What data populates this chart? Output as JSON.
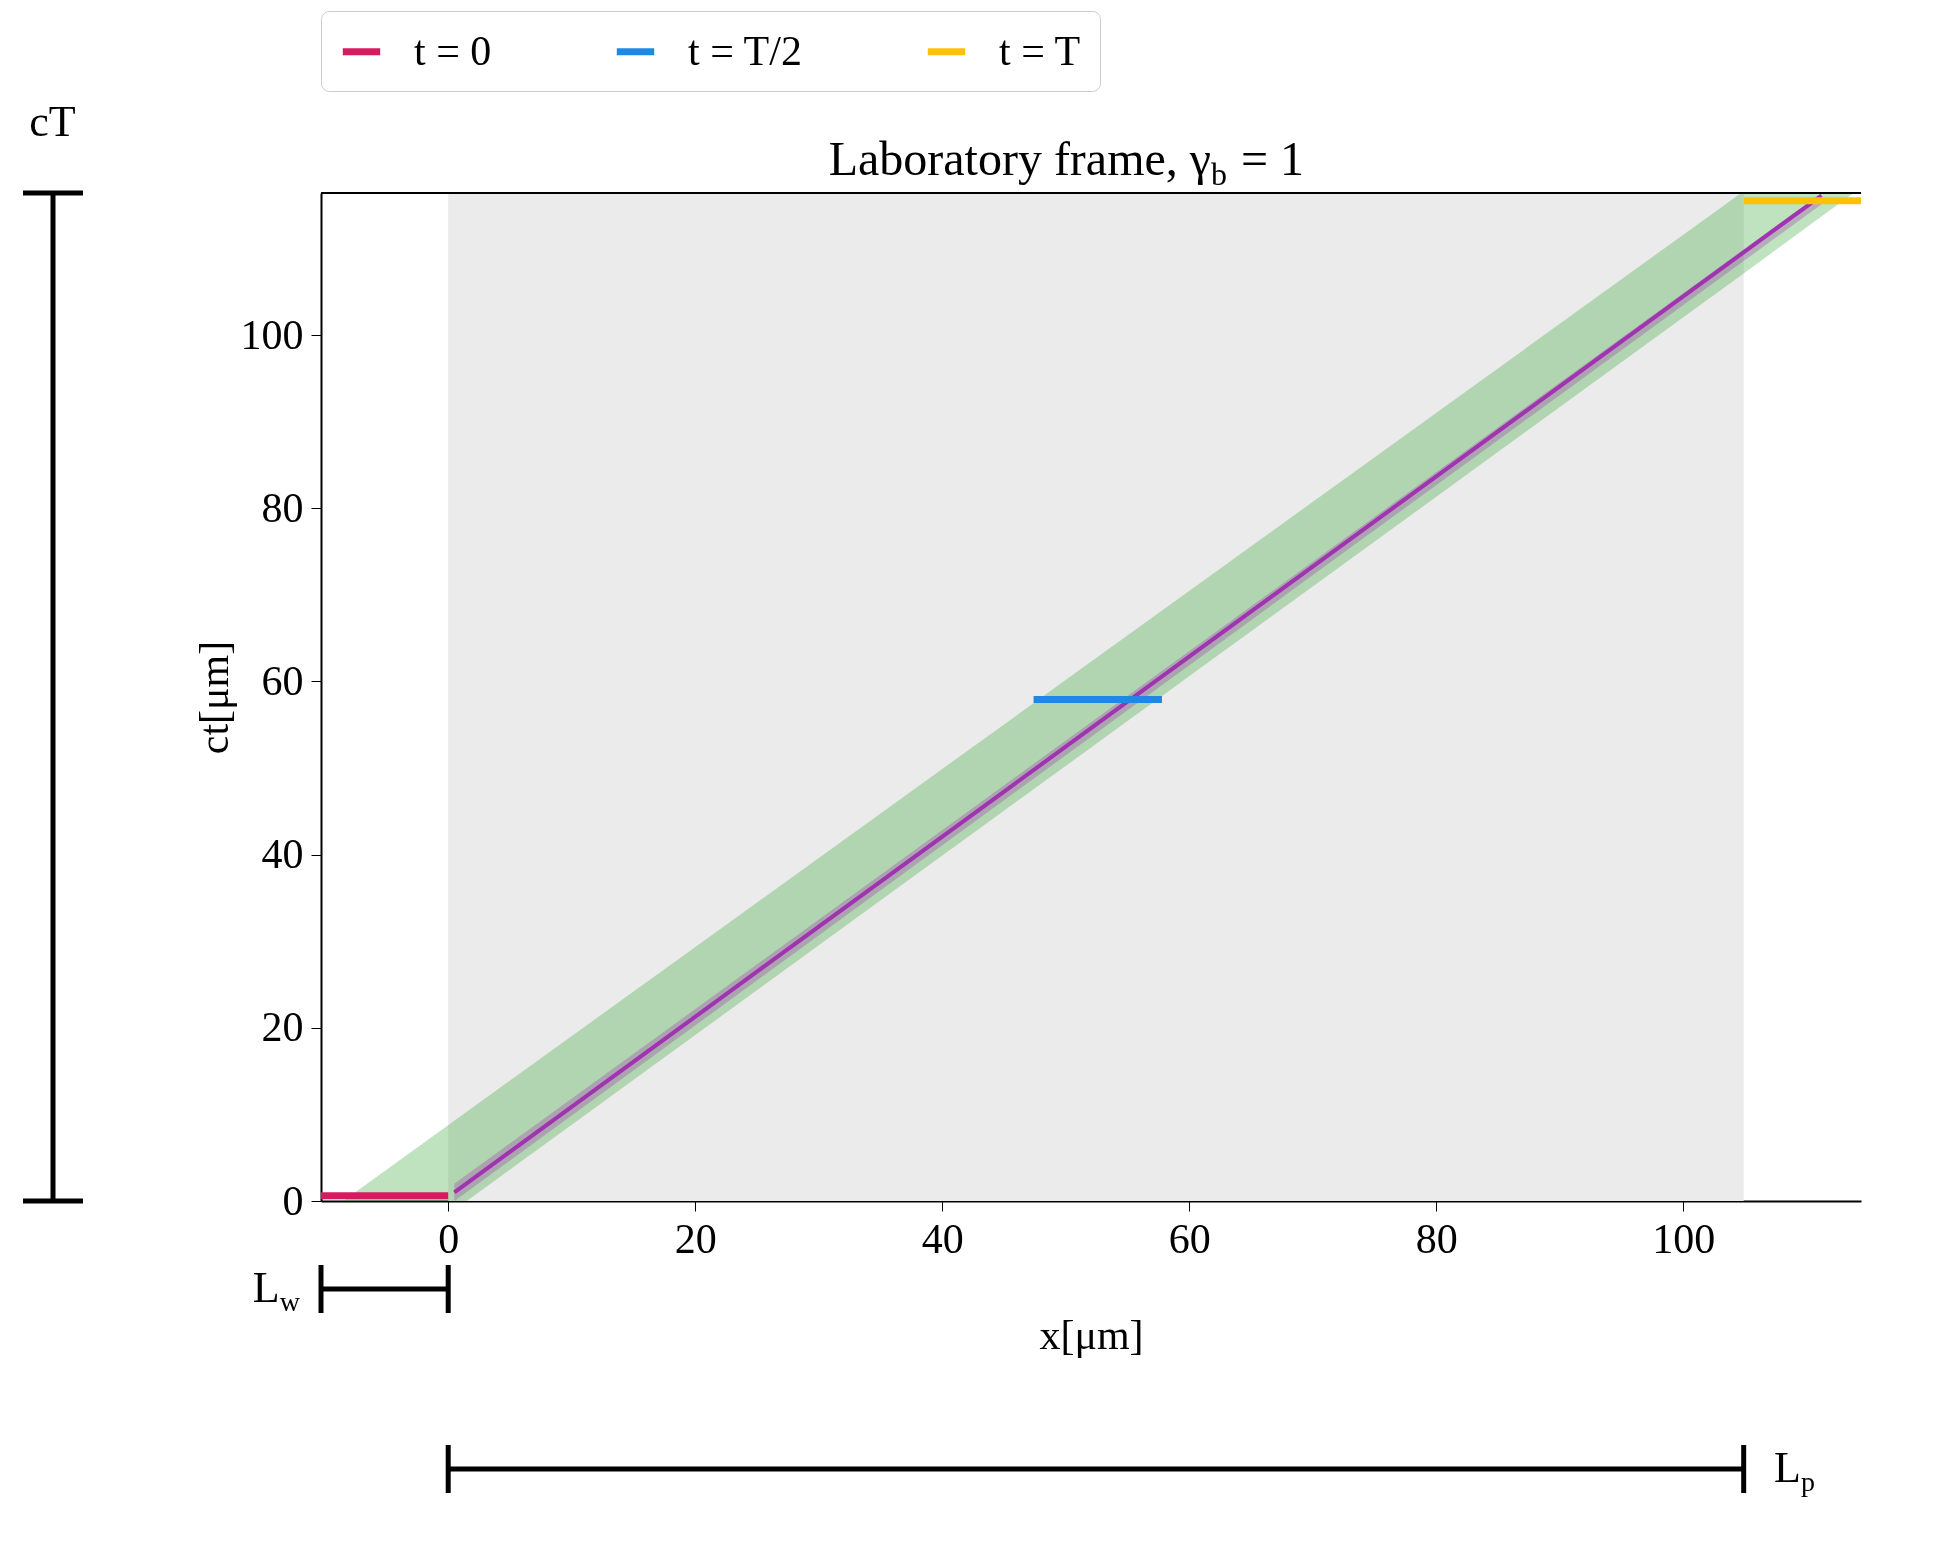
{
  "chart_data": {
    "type": "line",
    "title": "Laboratory frame, γ$_{b}$ = 1",
    "xlabel": "x[μm]",
    "ylabel": "ct[μm]",
    "xlim": [
      -10.3,
      114.4
    ],
    "ylim": [
      0,
      116.4
    ],
    "xticks": [
      0,
      20,
      40,
      60,
      80,
      100
    ],
    "yticks": [
      0,
      20,
      40,
      60,
      80,
      100
    ],
    "grid": false,
    "legend": "top",
    "bands": [
      {
        "axis": "x",
        "from": 0,
        "to": 104.9,
        "color": "#ebebeb"
      }
    ],
    "series": [
      {
        "color": "#2ca02c",
        "x": [
          -8.5,
          1.5,
          104.7,
          113.8
        ],
        "values": [
          null,
          null,
          null,
          null
        ],
        "lower": [
          0,
          0,
          106.9,
          116.4
        ],
        "upper": [
          0,
          10.3,
          116.4,
          116.4
        ]
      },
      {
        "color": "#a033b0",
        "x": [
          0.5,
          111.2
        ],
        "values": [
          1.0,
          116.1
        ],
        "lower": [
          0,
          115.1
        ],
        "upper": [
          2.0,
          116.4
        ]
      },
      {
        "name": "t = 0",
        "color": "#d81b60",
        "x": [
          -10.3,
          0
        ],
        "values": [
          0.6,
          0.6
        ]
      },
      {
        "name": "t = T/2",
        "color": "#1e88e5",
        "x": [
          47.4,
          57.8
        ],
        "values": [
          57.9,
          57.9
        ]
      },
      {
        "name": "t = T",
        "color": "#ffc107",
        "x": [
          104.9,
          114.4
        ],
        "values": [
          115.5,
          115.5
        ]
      }
    ],
    "annotations": [
      "cT",
      "L$_{w}$",
      "L$_{p}$"
    ]
  }
}
